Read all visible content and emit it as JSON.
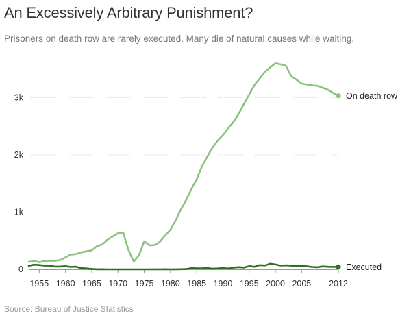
{
  "header": {
    "title": "An Excessively Arbitrary Punishment?",
    "subtitle": "Prisoners on death row are rarely executed. Many die of natural causes while waiting."
  },
  "footer": {
    "source": "Source: Bureau of Justice Statistics"
  },
  "colors": {
    "on_death_row": "#8cc27f",
    "executed": "#2f6e23",
    "grid": "#d9d9d9",
    "axis": "#999999"
  },
  "chart_data": {
    "type": "line",
    "title": "An Excessively Arbitrary Punishment?",
    "xlabel": "",
    "ylabel": "",
    "xlim": [
      1953,
      2012
    ],
    "ylim": [
      0,
      3700
    ],
    "x_ticks": [
      1955,
      1960,
      1965,
      1970,
      1975,
      1980,
      1985,
      1990,
      1995,
      2000,
      2005,
      2012
    ],
    "y_ticks": [
      0,
      1000,
      2000,
      3000
    ],
    "y_tick_labels": [
      "0",
      "1k",
      "2k",
      "3k"
    ],
    "grid": true,
    "legend": "end-of-line labels",
    "x": [
      1953,
      1954,
      1955,
      1956,
      1957,
      1958,
      1959,
      1960,
      1961,
      1962,
      1963,
      1964,
      1965,
      1966,
      1967,
      1968,
      1969,
      1970,
      1971,
      1972,
      1973,
      1974,
      1975,
      1976,
      1977,
      1978,
      1979,
      1980,
      1981,
      1982,
      1983,
      1984,
      1985,
      1986,
      1987,
      1988,
      1989,
      1990,
      1991,
      1992,
      1993,
      1994,
      1995,
      1996,
      1997,
      1998,
      1999,
      2000,
      2001,
      2002,
      2003,
      2004,
      2005,
      2006,
      2007,
      2008,
      2009,
      2010,
      2011,
      2012
    ],
    "series": [
      {
        "name": "On death row",
        "values": [
          131,
          147,
          125,
          146,
          151,
          148,
          164,
          210,
          257,
          267,
          297,
          315,
          331,
          406,
          435,
          517,
          575,
          631,
          642,
          334,
          134,
          244,
          488,
          420,
          423,
          482,
          593,
          691,
          856,
          1050,
          1209,
          1405,
          1575,
          1800,
          1967,
          2124,
          2250,
          2346,
          2466,
          2575,
          2716,
          2890,
          3054,
          3219,
          3335,
          3452,
          3527,
          3601,
          3581,
          3557,
          3374,
          3314,
          3245,
          3228,
          3215,
          3207,
          3173,
          3139,
          3082,
          3033
        ]
      },
      {
        "name": "Executed",
        "values": [
          62,
          81,
          76,
          65,
          65,
          49,
          49,
          56,
          42,
          47,
          21,
          15,
          7,
          1,
          2,
          0,
          0,
          0,
          0,
          0,
          0,
          0,
          0,
          0,
          1,
          0,
          2,
          0,
          1,
          2,
          5,
          21,
          18,
          18,
          25,
          11,
          16,
          23,
          14,
          31,
          38,
          31,
          56,
          45,
          74,
          68,
          98,
          85,
          66,
          71,
          65,
          59,
          60,
          53,
          42,
          37,
          52,
          46,
          43,
          43
        ]
      }
    ],
    "end_labels": [
      "On death row",
      "Executed"
    ]
  }
}
